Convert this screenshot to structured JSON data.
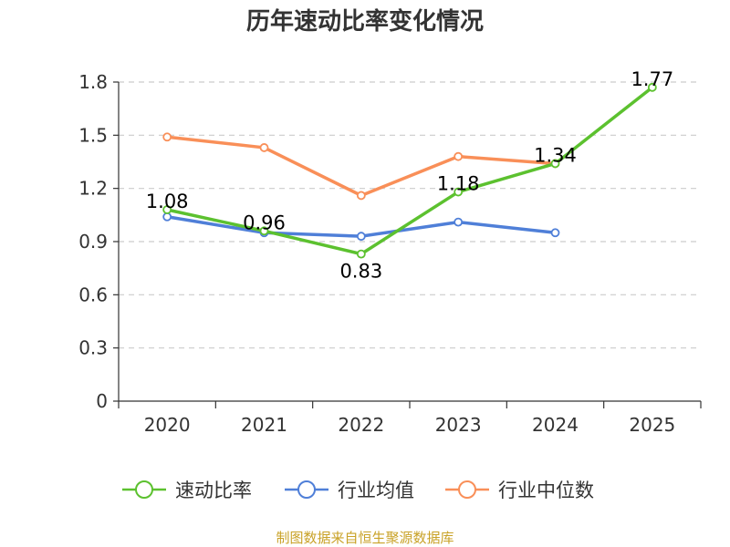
{
  "chart_data": {
    "type": "line",
    "title": "历年速动比率变化情况",
    "categories": [
      "2020",
      "2021",
      "2022",
      "2023",
      "2024",
      "2025"
    ],
    "ylim": [
      0,
      1.8
    ],
    "yticks": [
      "0",
      "0.3",
      "0.6",
      "0.9",
      "1.2",
      "1.5",
      "1.8"
    ],
    "grid": true,
    "legend_position": "bottom",
    "series": [
      {
        "name": "速动比率",
        "color": "#5cc12f",
        "values": [
          1.08,
          0.96,
          0.83,
          1.18,
          1.34,
          1.77
        ],
        "labels": [
          "1.08",
          "0.96",
          "0.83",
          "1.18",
          "1.34",
          "1.77"
        ]
      },
      {
        "name": "行业均值",
        "color": "#4f7fd8",
        "values": [
          1.04,
          0.95,
          0.93,
          1.01,
          0.95,
          null
        ]
      },
      {
        "name": "行业中位数",
        "color": "#f98f58",
        "values": [
          1.49,
          1.43,
          1.16,
          1.38,
          1.34,
          null
        ]
      }
    ],
    "source": "制图数据来自恒生聚源数据库"
  }
}
